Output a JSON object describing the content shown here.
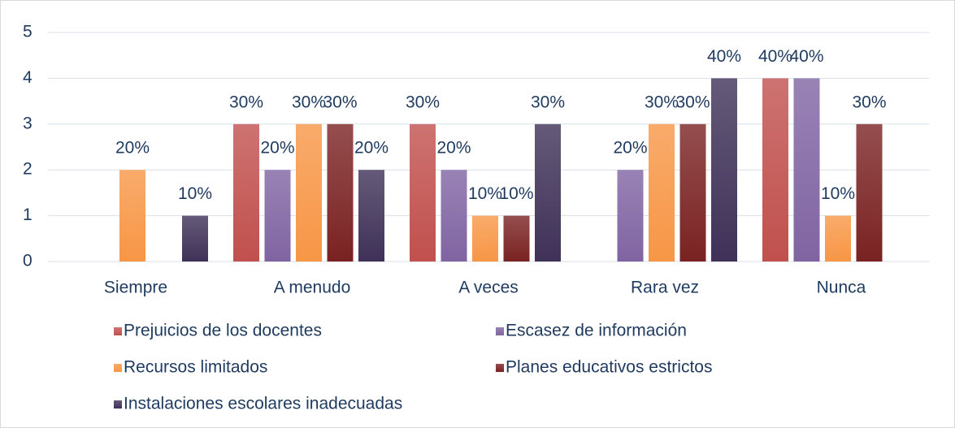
{
  "chart_data": {
    "type": "bar",
    "categories": [
      "Siempre",
      "A menudo",
      "A veces",
      "Rara vez",
      "Nunca"
    ],
    "series": [
      {
        "name": "Prejuicios de los docentes",
        "color": "#c0504d",
        "values": [
          null,
          3,
          3,
          null,
          4
        ],
        "value_labels": [
          null,
          "30%",
          "30%",
          null,
          "40%"
        ]
      },
      {
        "name": "Escasez de información",
        "color": "#8064a2",
        "values": [
          null,
          2,
          2,
          2,
          4
        ],
        "value_labels": [
          null,
          "20%",
          "20%",
          "20%",
          "40%"
        ]
      },
      {
        "name": "Recursos limitados",
        "color": "#f79646",
        "values": [
          2,
          3,
          1,
          3,
          1
        ],
        "value_labels": [
          "20%",
          "30%",
          "10%",
          "30%",
          "10%"
        ]
      },
      {
        "name": "Planes educativos estrictos",
        "color": "#7a2222",
        "values": [
          null,
          3,
          1,
          3,
          3
        ],
        "value_labels": [
          null,
          "30%",
          "10%",
          "30%",
          "30%"
        ]
      },
      {
        "name": "Instalaciones escolares inadecuadas",
        "color": "#3f3158",
        "values": [
          1,
          2,
          3,
          4,
          null
        ],
        "value_labels": [
          "10%",
          "20%",
          "30%",
          "40%",
          null
        ]
      }
    ],
    "ylim": [
      0,
      5
    ],
    "yticks": [
      0,
      1,
      2,
      3,
      4,
      5
    ],
    "grid": true,
    "legend": "bottom"
  }
}
